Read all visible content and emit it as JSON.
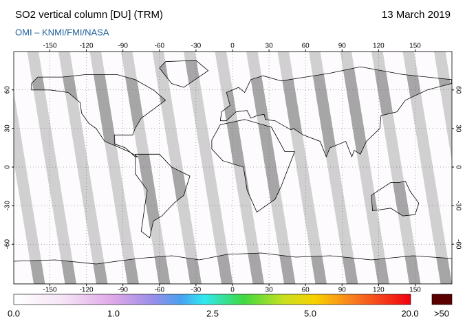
{
  "header": {
    "title": "SO2 vertical column [DU] (TRM)",
    "date": "13 March 2019",
    "subtitle": "OMI  –  KNMI/FMI/NASA"
  },
  "map": {
    "lon_ticks": [
      -150,
      -120,
      -90,
      -60,
      -30,
      0,
      30,
      60,
      90,
      120,
      150
    ],
    "lat_ticks": [
      60,
      30,
      0,
      -30,
      -60
    ]
  },
  "colorbar": {
    "labels": [
      "0.0",
      "1.0",
      "2.5",
      "5.0",
      "20.0",
      ">50"
    ]
  }
}
